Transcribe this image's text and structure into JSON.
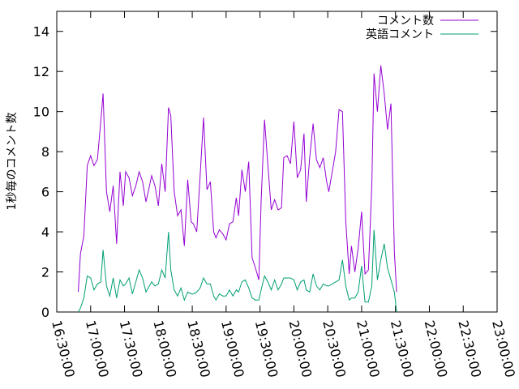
{
  "chart_data": {
    "type": "line",
    "title": "",
    "xlabel": "",
    "ylabel": "1秒毎のコメント数",
    "ylim": [
      0,
      15
    ],
    "yticks": [
      "0",
      "2",
      "4",
      "6",
      "8",
      "10",
      "12",
      "14"
    ],
    "xlim": [
      "16:30:00",
      "23:00:00"
    ],
    "xticks": [
      "16:30:00",
      "17:00:00",
      "17:30:00",
      "18:00:00",
      "18:30:00",
      "19:00:00",
      "19:30:00",
      "20:00:00",
      "20:30:00",
      "21:00:00",
      "21:30:00",
      "22:00:00",
      "22:30:00",
      "23:00:00"
    ],
    "grid": false,
    "legend": "top-right",
    "series": [
      {
        "name": "コメント数",
        "color": "#9400d3",
        "points": [
          [
            "16:49:00",
            1.0
          ],
          [
            "16:51:00",
            2.9
          ],
          [
            "16:54:00",
            3.8
          ],
          [
            "16:57:00",
            7.3
          ],
          [
            "17:00:00",
            7.8
          ],
          [
            "17:03:00",
            7.3
          ],
          [
            "17:06:00",
            7.6
          ],
          [
            "17:09:00",
            9.5
          ],
          [
            "17:11:00",
            10.9
          ],
          [
            "17:14:00",
            6.0
          ],
          [
            "17:17:00",
            5.0
          ],
          [
            "17:20:00",
            6.3
          ],
          [
            "17:23:00",
            3.4
          ],
          [
            "17:26:00",
            7.0
          ],
          [
            "17:29:00",
            5.3
          ],
          [
            "17:31:00",
            7.0
          ],
          [
            "17:34:00",
            6.7
          ],
          [
            "17:37:00",
            5.8
          ],
          [
            "17:40:00",
            6.3
          ],
          [
            "17:43:00",
            7.0
          ],
          [
            "17:46:00",
            6.5
          ],
          [
            "17:49:00",
            5.5
          ],
          [
            "17:51:00",
            6.0
          ],
          [
            "17:54:00",
            6.8
          ],
          [
            "17:57:00",
            6.3
          ],
          [
            "18:00:00",
            5.3
          ],
          [
            "18:03:00",
            7.4
          ],
          [
            "18:06:00",
            6.0
          ],
          [
            "18:09:00",
            10.2
          ],
          [
            "18:11:00",
            9.8
          ],
          [
            "18:14:00",
            6.0
          ],
          [
            "18:17:00",
            4.8
          ],
          [
            "18:20:00",
            5.1
          ],
          [
            "18:23:00",
            3.3
          ],
          [
            "18:26:00",
            6.6
          ],
          [
            "18:29:00",
            4.5
          ],
          [
            "18:31:00",
            4.4
          ],
          [
            "18:34:00",
            4.0
          ],
          [
            "18:37:00",
            6.8
          ],
          [
            "18:40:00",
            9.7
          ],
          [
            "18:43:00",
            6.1
          ],
          [
            "18:46:00",
            6.5
          ],
          [
            "18:49:00",
            4.0
          ],
          [
            "18:51:00",
            3.7
          ],
          [
            "18:54:00",
            4.1
          ],
          [
            "18:57:00",
            3.9
          ],
          [
            "19:00:00",
            3.6
          ],
          [
            "19:03:00",
            4.4
          ],
          [
            "19:06:00",
            4.5
          ],
          [
            "19:09:00",
            5.7
          ],
          [
            "19:11:00",
            4.8
          ],
          [
            "19:14:00",
            7.1
          ],
          [
            "19:17:00",
            6.0
          ],
          [
            "19:20:00",
            7.5
          ],
          [
            "19:23:00",
            2.7
          ],
          [
            "19:26:00",
            2.2
          ],
          [
            "19:29:00",
            1.6
          ],
          [
            "19:31:00",
            5.5
          ],
          [
            "19:34:00",
            9.6
          ],
          [
            "19:37:00",
            7.3
          ],
          [
            "19:40:00",
            5.1
          ],
          [
            "19:43:00",
            5.6
          ],
          [
            "19:46:00",
            5.1
          ],
          [
            "19:49:00",
            5.2
          ],
          [
            "19:51:00",
            7.7
          ],
          [
            "19:54:00",
            7.8
          ],
          [
            "19:57:00",
            7.4
          ],
          [
            "20:00:00",
            9.5
          ],
          [
            "20:03:00",
            6.7
          ],
          [
            "20:06:00",
            7.1
          ],
          [
            "20:09:00",
            8.9
          ],
          [
            "20:11:00",
            5.5
          ],
          [
            "20:14:00",
            7.7
          ],
          [
            "20:17:00",
            9.4
          ],
          [
            "20:20:00",
            7.6
          ],
          [
            "20:23:00",
            7.2
          ],
          [
            "20:26:00",
            7.7
          ],
          [
            "20:29:00",
            6.5
          ],
          [
            "20:31:00",
            6.0
          ],
          [
            "20:34:00",
            7.0
          ],
          [
            "20:37:00",
            8.0
          ],
          [
            "20:40:00",
            10.1
          ],
          [
            "20:43:00",
            10.0
          ],
          [
            "20:46:00",
            4.5
          ],
          [
            "20:49:00",
            1.9
          ],
          [
            "20:51:00",
            3.3
          ],
          [
            "20:54:00",
            2.0
          ],
          [
            "20:57:00",
            3.2
          ],
          [
            "21:00:00",
            5.0
          ],
          [
            "21:03:00",
            1.9
          ],
          [
            "21:06:00",
            2.1
          ],
          [
            "21:09:00",
            6.3
          ],
          [
            "21:11:00",
            11.9
          ],
          [
            "21:14:00",
            10.0
          ],
          [
            "21:17:00",
            12.3
          ],
          [
            "21:20:00",
            10.9
          ],
          [
            "21:23:00",
            9.1
          ],
          [
            "21:26:00",
            10.4
          ],
          [
            "21:29:00",
            3.0
          ],
          [
            "21:31:00",
            1.0
          ]
        ]
      },
      {
        "name": "英語コメント",
        "color": "#009e73",
        "points": [
          [
            "16:49:00",
            0.0
          ],
          [
            "16:51:00",
            0.2
          ],
          [
            "16:54:00",
            0.7
          ],
          [
            "16:57:00",
            1.8
          ],
          [
            "17:00:00",
            1.7
          ],
          [
            "17:03:00",
            1.1
          ],
          [
            "17:06:00",
            1.4
          ],
          [
            "17:09:00",
            1.5
          ],
          [
            "17:11:00",
            3.1
          ],
          [
            "17:14:00",
            1.3
          ],
          [
            "17:17:00",
            0.8
          ],
          [
            "17:20:00",
            1.7
          ],
          [
            "17:23:00",
            0.7
          ],
          [
            "17:26:00",
            1.6
          ],
          [
            "17:29:00",
            1.3
          ],
          [
            "17:31:00",
            1.4
          ],
          [
            "17:34:00",
            1.7
          ],
          [
            "17:37:00",
            0.9
          ],
          [
            "17:40:00",
            1.5
          ],
          [
            "17:43:00",
            2.1
          ],
          [
            "17:46:00",
            1.7
          ],
          [
            "17:49:00",
            1.0
          ],
          [
            "17:51:00",
            1.2
          ],
          [
            "17:54:00",
            1.5
          ],
          [
            "17:57:00",
            1.3
          ],
          [
            "18:00:00",
            1.4
          ],
          [
            "18:03:00",
            2.1
          ],
          [
            "18:06:00",
            1.7
          ],
          [
            "18:09:00",
            4.0
          ],
          [
            "18:11:00",
            2.1
          ],
          [
            "18:14:00",
            1.1
          ],
          [
            "18:17:00",
            0.8
          ],
          [
            "18:20:00",
            1.2
          ],
          [
            "18:23:00",
            0.6
          ],
          [
            "18:26:00",
            1.0
          ],
          [
            "18:29:00",
            0.9
          ],
          [
            "18:31:00",
            0.9
          ],
          [
            "18:34:00",
            1.0
          ],
          [
            "18:37:00",
            1.2
          ],
          [
            "18:40:00",
            1.7
          ],
          [
            "18:43:00",
            1.4
          ],
          [
            "18:46:00",
            1.4
          ],
          [
            "18:49:00",
            0.8
          ],
          [
            "18:51:00",
            0.6
          ],
          [
            "18:54:00",
            0.9
          ],
          [
            "18:57:00",
            0.8
          ],
          [
            "19:00:00",
            0.8
          ],
          [
            "19:03:00",
            1.1
          ],
          [
            "19:06:00",
            0.8
          ],
          [
            "19:09:00",
            1.1
          ],
          [
            "19:11:00",
            1.0
          ],
          [
            "19:14:00",
            1.5
          ],
          [
            "19:17:00",
            1.6
          ],
          [
            "19:20:00",
            1.2
          ],
          [
            "19:23:00",
            0.7
          ],
          [
            "19:26:00",
            0.6
          ],
          [
            "19:29:00",
            0.6
          ],
          [
            "19:31:00",
            1.1
          ],
          [
            "19:34:00",
            1.8
          ],
          [
            "19:37:00",
            1.5
          ],
          [
            "19:40:00",
            1.1
          ],
          [
            "19:43:00",
            1.6
          ],
          [
            "19:46:00",
            1.1
          ],
          [
            "19:49:00",
            1.4
          ],
          [
            "19:51:00",
            1.7
          ],
          [
            "19:54:00",
            1.7
          ],
          [
            "19:57:00",
            1.7
          ],
          [
            "20:00:00",
            1.6
          ],
          [
            "20:03:00",
            1.1
          ],
          [
            "20:06:00",
            1.5
          ],
          [
            "20:09:00",
            1.6
          ],
          [
            "20:11:00",
            1.1
          ],
          [
            "20:14:00",
            1.0
          ],
          [
            "20:17:00",
            1.9
          ],
          [
            "20:20:00",
            1.3
          ],
          [
            "20:23:00",
            1.1
          ],
          [
            "20:26:00",
            1.4
          ],
          [
            "20:29:00",
            1.3
          ],
          [
            "20:31:00",
            1.3
          ],
          [
            "20:34:00",
            1.4
          ],
          [
            "20:37:00",
            1.5
          ],
          [
            "20:40:00",
            1.6
          ],
          [
            "20:43:00",
            2.6
          ],
          [
            "20:46:00",
            1.3
          ],
          [
            "20:49:00",
            0.6
          ],
          [
            "20:51:00",
            0.7
          ],
          [
            "20:54:00",
            0.7
          ],
          [
            "20:57:00",
            1.0
          ],
          [
            "21:00:00",
            2.3
          ],
          [
            "21:03:00",
            0.5
          ],
          [
            "21:06:00",
            0.5
          ],
          [
            "21:09:00",
            1.3
          ],
          [
            "21:11:00",
            4.1
          ],
          [
            "21:14:00",
            1.6
          ],
          [
            "21:17:00",
            2.6
          ],
          [
            "21:20:00",
            3.4
          ],
          [
            "21:23:00",
            2.2
          ],
          [
            "21:26:00",
            1.6
          ],
          [
            "21:29:00",
            1.0
          ],
          [
            "21:31:00",
            0.0
          ]
        ]
      }
    ]
  }
}
